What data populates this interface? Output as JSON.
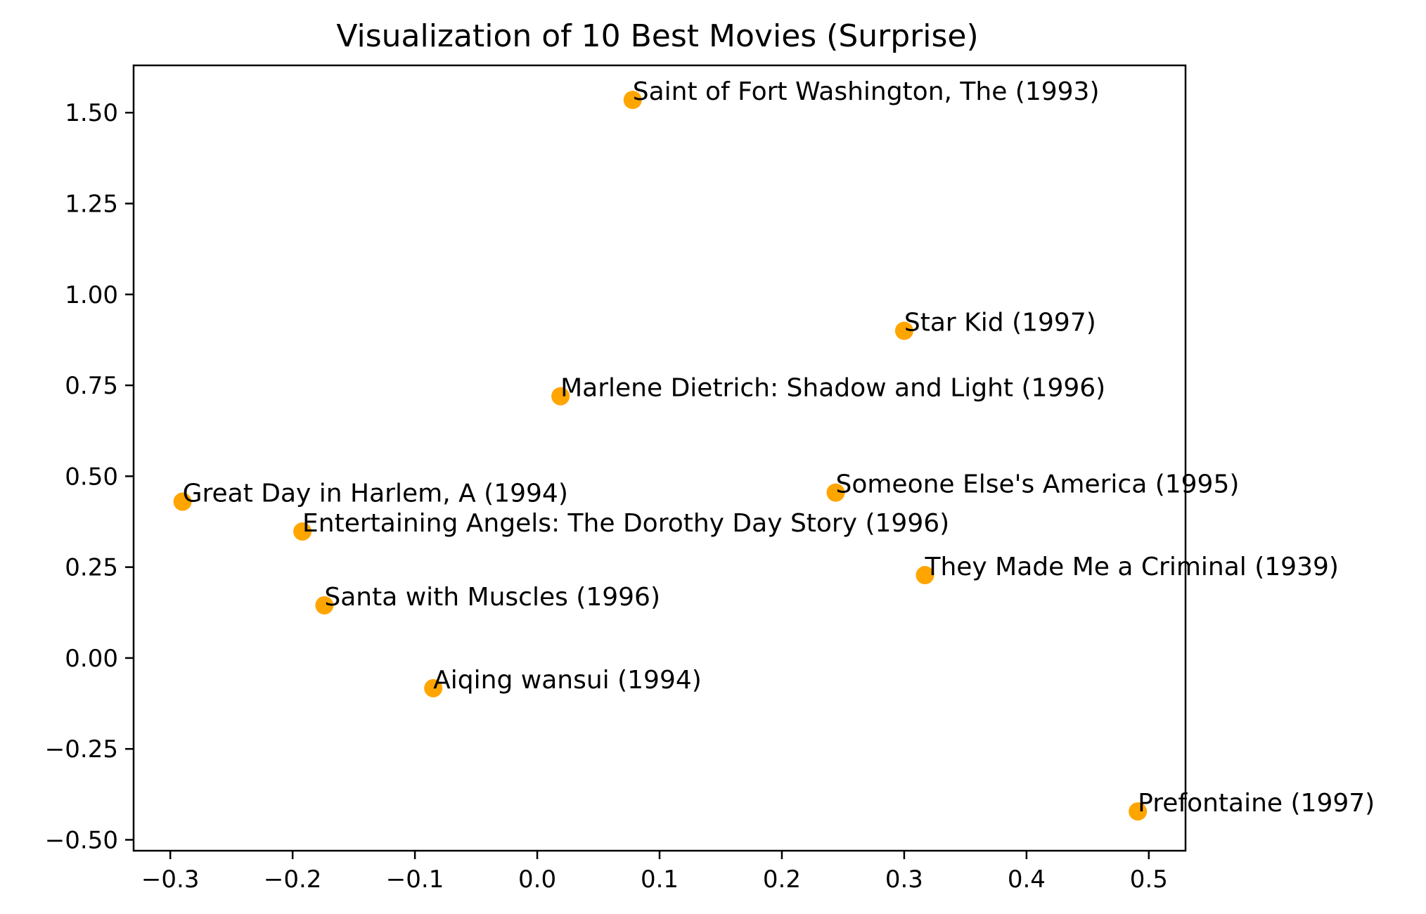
{
  "chart_data": {
    "type": "scatter",
    "title": "Visualization of 10 Best Movies (Surprise)",
    "xlabel": "",
    "ylabel": "",
    "xlim": [
      -0.33,
      0.53
    ],
    "ylim": [
      -0.53,
      1.63
    ],
    "xticks": [
      -0.3,
      -0.2,
      -0.1,
      0.0,
      0.1,
      0.2,
      0.3,
      0.4,
      0.5
    ],
    "xtick_labels": [
      "−0.3",
      "−0.2",
      "−0.1",
      "0.0",
      "0.1",
      "0.2",
      "0.3",
      "0.4",
      "0.5"
    ],
    "yticks": [
      1.5,
      1.25,
      1.0,
      0.75,
      0.5,
      0.25,
      0.0,
      -0.25,
      -0.5
    ],
    "ytick_labels": [
      "1.50",
      "1.25",
      "1.00",
      "0.75",
      "0.50",
      "0.25",
      "0.00",
      "−0.25",
      "−0.50"
    ],
    "grid": false,
    "marker_color": "#FFA500",
    "points": [
      {
        "label": "Saint of Fort Washington, The (1993)",
        "x": 0.078,
        "y": 1.535
      },
      {
        "label": "Star Kid (1997)",
        "x": 0.3,
        "y": 0.9
      },
      {
        "label": "Marlene Dietrich: Shadow and Light (1996)",
        "x": 0.019,
        "y": 0.72
      },
      {
        "label": "Great Day in Harlem, A (1994)",
        "x": -0.29,
        "y": 0.43
      },
      {
        "label": "Someone Else's America (1995)",
        "x": 0.244,
        "y": 0.455
      },
      {
        "label": "Entertaining Angels: The Dorothy Day Story (1996)",
        "x": -0.192,
        "y": 0.348
      },
      {
        "label": "They Made Me a Criminal (1939)",
        "x": 0.317,
        "y": 0.228
      },
      {
        "label": "Santa with Muscles (1996)",
        "x": -0.174,
        "y": 0.145
      },
      {
        "label": "Aiqing wansui (1994)",
        "x": -0.085,
        "y": -0.083
      },
      {
        "label": "Prefontaine (1997)",
        "x": 0.491,
        "y": -0.422
      }
    ]
  }
}
